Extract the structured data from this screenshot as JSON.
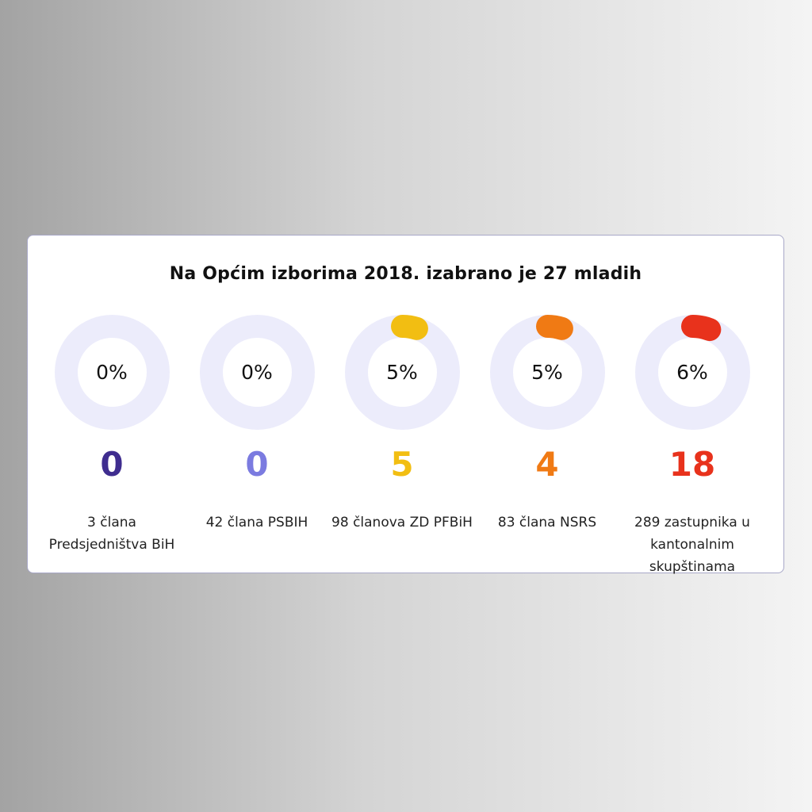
{
  "chart_data": {
    "type": "pie",
    "title": "Na Općim izborima 2018. izabrano je 27 mladih",
    "track_color": "#ececfb",
    "items": [
      {
        "percent": 0,
        "percent_label": "0%",
        "count": "0",
        "label": "3 člana Predsjedništva BiH",
        "color": "#3f2d8f"
      },
      {
        "percent": 0,
        "percent_label": "0%",
        "count": "0",
        "label": "42 člana PSBIH",
        "color": "#7b7be0"
      },
      {
        "percent": 5,
        "percent_label": "5%",
        "count": "5",
        "label": "98 članova ZD PFBiH",
        "color": "#f2be12"
      },
      {
        "percent": 5,
        "percent_label": "5%",
        "count": "4",
        "label": "83 člana NSRS",
        "color": "#f07a14"
      },
      {
        "percent": 6,
        "percent_label": "6%",
        "count": "18",
        "label": "289 zastupnika u kantonalnim skupštinama",
        "color": "#e8321c"
      }
    ]
  }
}
